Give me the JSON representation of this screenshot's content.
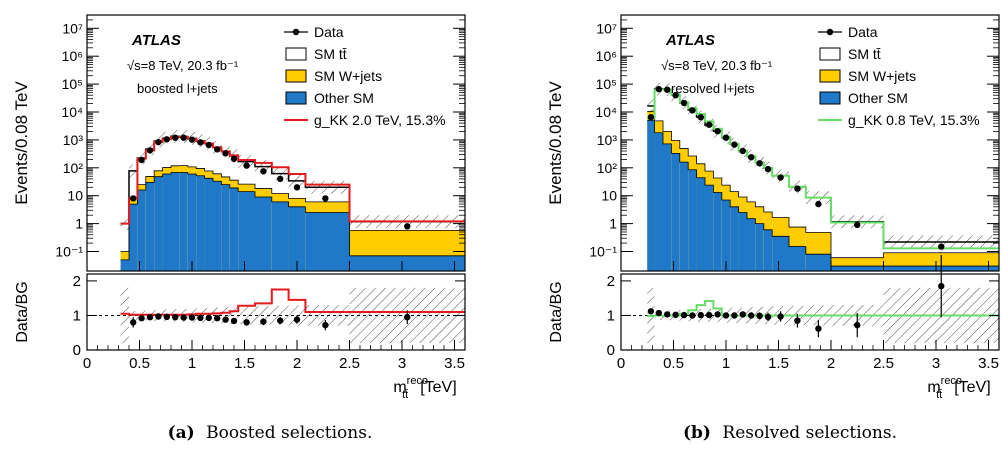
{
  "captions": [
    {
      "tag": "(a)",
      "text": "Boosted selections."
    },
    {
      "tag": "(b)",
      "text": "Resolved selections."
    }
  ],
  "colors": {
    "data": "#000000",
    "sm_ttbar": "#ffffff",
    "sm_wjets": "#ffcc00",
    "other_sm": "#1f78c8",
    "signal_boosted": "#e41a1c",
    "signal_resolved": "#66dd66"
  },
  "chart_data": [
    {
      "type": "bar",
      "subtype": "stacked-histogram-with-ratio",
      "panel": "boosted",
      "ylabel": "Events/0.08 TeV",
      "ratio_ylabel": "Data/BG",
      "xlabel": "m",
      "xlabel_sub": "tt̄",
      "xlabel_sup": "reco",
      "xlabel_unit": "[TeV]",
      "xlim": [
        0,
        3.6
      ],
      "ylim": [
        0.02,
        30000000.0
      ],
      "yscale": "log",
      "ratio_ylim": [
        0,
        2.2
      ],
      "x_ticks": [
        "0",
        "0.5",
        "1",
        "1.5",
        "2",
        "2.5",
        "3",
        "3.5"
      ],
      "y_ticks": [
        "10⁻¹",
        "1",
        "10",
        "10²",
        "10³",
        "10⁴",
        "10⁵",
        "10⁶",
        "10⁷"
      ],
      "ratio_ticks": [
        "0",
        "1",
        "2"
      ],
      "atlas_label": "ATLAS",
      "energy_label": "√s=8 TeV, 20.3 fb⁻¹",
      "selection_label": "boosted l+jets",
      "legend": [
        "Data",
        "SM tt̄",
        "SM W+jets",
        "Other SM",
        "g_KK 2.0 TeV, 15.3%"
      ],
      "bin_edges": [
        0.32,
        0.4,
        0.48,
        0.56,
        0.64,
        0.72,
        0.8,
        0.88,
        0.96,
        1.04,
        1.12,
        1.2,
        1.28,
        1.36,
        1.44,
        1.6,
        1.76,
        1.92,
        2.08,
        2.5,
        3.6
      ],
      "series": [
        {
          "name": "Other SM",
          "values": [
            0.05,
            5,
            16,
            30,
            48,
            60,
            68,
            68,
            60,
            52,
            42,
            33,
            25,
            19,
            14,
            9,
            6,
            4,
            2.5,
            0.07
          ]
        },
        {
          "name": "SM W+jets",
          "values": [
            0.05,
            3,
            9,
            19,
            30,
            42,
            50,
            52,
            48,
            42,
            35,
            28,
            22,
            17,
            12,
            9,
            6,
            4,
            3.5,
            0.5
          ]
        },
        {
          "name": "SM tt̄",
          "values": [
            0.9,
            70,
            200,
            420,
            830,
            1050,
            1220,
            1200,
            1030,
            830,
            680,
            480,
            330,
            230,
            140,
            92,
            50,
            26,
            14,
            0.6
          ]
        },
        {
          "name": "g_KK 2.0 TeV, 15.3%",
          "values": [
            1.0,
            8,
            215,
            420,
            840,
            1070,
            1270,
            1270,
            1100,
            900,
            740,
            540,
            390,
            280,
            190,
            150,
            105,
            60,
            25,
            1.2
          ]
        }
      ],
      "data_points": {
        "x": [
          0.44,
          0.52,
          0.6,
          0.68,
          0.76,
          0.84,
          0.92,
          1.0,
          1.08,
          1.16,
          1.24,
          1.32,
          1.4,
          1.52,
          1.68,
          1.84,
          2.0,
          2.27,
          3.05
        ],
        "y": [
          8,
          190,
          420,
          830,
          1050,
          1200,
          1200,
          1020,
          820,
          660,
          460,
          330,
          210,
          120,
          75,
          40,
          20,
          8,
          0.8
        ],
        "ratio": [
          0.8,
          0.92,
          0.95,
          0.97,
          0.96,
          0.95,
          0.94,
          0.94,
          0.93,
          0.93,
          0.92,
          0.88,
          0.84,
          0.8,
          0.82,
          0.85,
          0.88,
          0.72,
          0.95
        ],
        "ratio_err": [
          0.15,
          0.06,
          0.04,
          0.03,
          0.03,
          0.03,
          0.03,
          0.03,
          0.04,
          0.04,
          0.05,
          0.06,
          0.07,
          0.08,
          0.1,
          0.1,
          0.12,
          0.15,
          0.2
        ]
      },
      "signal_ratio": [
        1.05,
        1.02,
        1.02,
        1.02,
        1.02,
        1.02,
        1.02,
        1.02,
        1.03,
        1.05,
        1.05,
        1.06,
        1.08,
        1.12,
        1.28,
        1.35,
        1.75,
        1.45,
        1.1,
        1.1
      ]
    },
    {
      "type": "bar",
      "subtype": "stacked-histogram-with-ratio",
      "panel": "resolved",
      "ylabel": "Events/0.08 TeV",
      "ratio_ylabel": "Data/BG",
      "xlabel": "m",
      "xlabel_sub": "tt̄",
      "xlabel_sup": "reco",
      "xlabel_unit": "[TeV]",
      "xlim": [
        0,
        3.6
      ],
      "ylim": [
        0.02,
        30000000.0
      ],
      "yscale": "log",
      "ratio_ylim": [
        0,
        2.2
      ],
      "x_ticks": [
        "0",
        "0.5",
        "1",
        "1.5",
        "2",
        "2.5",
        "3",
        "3.5"
      ],
      "y_ticks": [
        "10⁻¹",
        "1",
        "10",
        "10²",
        "10³",
        "10⁴",
        "10⁵",
        "10⁶",
        "10⁷"
      ],
      "ratio_ticks": [
        "0",
        "1",
        "2"
      ],
      "atlas_label": "ATLAS",
      "energy_label": "√s=8 TeV, 20.3 fb⁻¹",
      "selection_label": "resolved l+jets",
      "legend": [
        "Data",
        "SM tt̄",
        "SM W+jets",
        "Other SM",
        "g_KK 0.8 TeV, 15.3%"
      ],
      "bin_edges": [
        0.25,
        0.32,
        0.4,
        0.48,
        0.56,
        0.64,
        0.72,
        0.8,
        0.88,
        0.96,
        1.04,
        1.12,
        1.2,
        1.28,
        1.36,
        1.44,
        1.6,
        1.76,
        2.0,
        2.5,
        3.6
      ],
      "series": [
        {
          "name": "Other SM",
          "values": [
            5000,
            1800,
            720,
            330,
            160,
            85,
            44,
            24,
            13,
            7,
            4,
            2.5,
            1.5,
            1,
            0.6,
            0.35,
            0.15,
            0.08,
            0.03,
            0.03
          ]
        },
        {
          "name": "SM W+jets",
          "values": [
            5600,
            3000,
            1300,
            620,
            330,
            180,
            95,
            52,
            30,
            17,
            10,
            6.5,
            4.5,
            3,
            2,
            1.3,
            0.6,
            0.4,
            0.03,
            0.06
          ]
        },
        {
          "name": "SM tt̄",
          "values": [
            5800,
            62000,
            62000,
            40000,
            21000,
            11500,
            6500,
            3300,
            2000,
            1200,
            680,
            400,
            250,
            150,
            95,
            50,
            20,
            8,
            1.1,
            0.13
          ]
        },
        {
          "name": "g_KK 0.8 TeV, 15.3%",
          "values": [
            6000,
            63000,
            63000,
            41000,
            22500,
            13500,
            8500,
            4600,
            2500,
            1300,
            700,
            410,
            260,
            155,
            98,
            52,
            21,
            8.5,
            1.1,
            0.13
          ]
        }
      ],
      "data_points": {
        "x": [
          0.285,
          0.36,
          0.44,
          0.52,
          0.6,
          0.68,
          0.76,
          0.84,
          0.92,
          1.0,
          1.08,
          1.16,
          1.24,
          1.32,
          1.4,
          1.52,
          1.68,
          1.88,
          2.25,
          3.05
        ],
        "y": [
          6500,
          66000,
          63000,
          40000,
          21000,
          11500,
          6500,
          3500,
          2050,
          1200,
          680,
          400,
          240,
          145,
          90,
          45,
          18,
          5,
          0.9,
          0.15
        ],
        "ratio": [
          1.12,
          1.07,
          1.03,
          1.02,
          1.01,
          1.0,
          1.01,
          1.01,
          1.03,
          1.0,
          1.0,
          1.03,
          1.0,
          0.99,
          0.96,
          0.97,
          0.85,
          0.62,
          0.72,
          1.85
        ],
        "ratio_err": [
          0.04,
          0.02,
          0.02,
          0.02,
          0.02,
          0.02,
          0.03,
          0.03,
          0.04,
          0.05,
          0.06,
          0.07,
          0.08,
          0.1,
          0.12,
          0.15,
          0.2,
          0.25,
          0.35,
          0.9
        ]
      },
      "signal_ratio": [
        0.98,
        1.0,
        1.0,
        1.0,
        1.05,
        1.15,
        1.3,
        1.42,
        1.2,
        1.0,
        1.0,
        1.0,
        1.0,
        1.0,
        1.0,
        1.0,
        1.0,
        1.0,
        1.0,
        1.0
      ]
    }
  ]
}
